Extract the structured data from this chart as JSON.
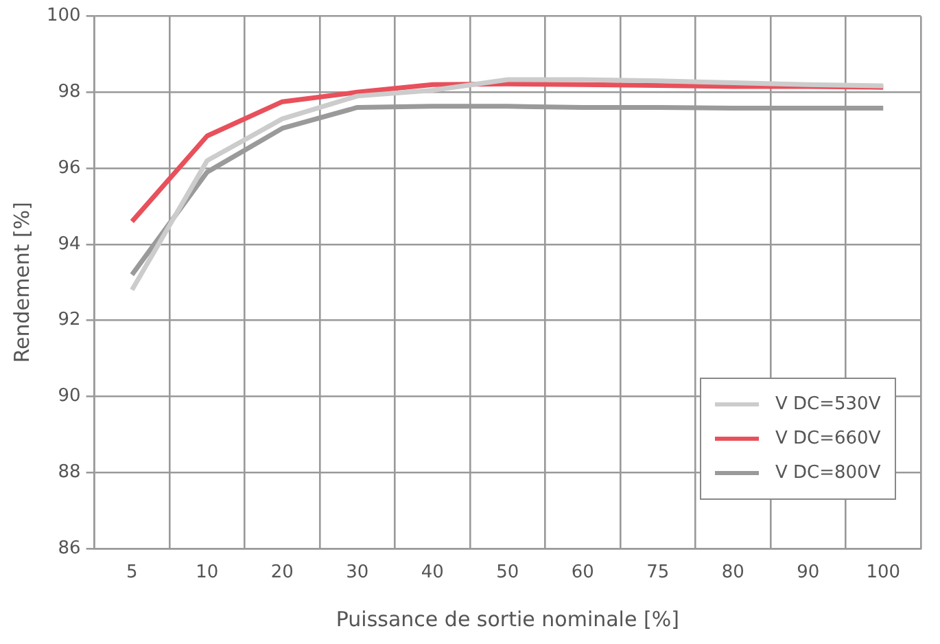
{
  "chart_data": {
    "type": "line",
    "xlabel": "Puissance de sortie nominale [%]",
    "ylabel": "Rendement [%]",
    "categories": [
      "5",
      "10",
      "20",
      "30",
      "40",
      "50",
      "60",
      "75",
      "80",
      "90",
      "100"
    ],
    "series": [
      {
        "name": "V DC=530V",
        "color": "#cccccc",
        "values": [
          92.8,
          96.2,
          97.3,
          97.9,
          98.05,
          98.33,
          98.33,
          98.3,
          98.25,
          98.2,
          98.17
        ]
      },
      {
        "name": "V DC=660V",
        "color": "#e8505b",
        "values": [
          94.6,
          96.85,
          97.75,
          98.0,
          98.2,
          98.22,
          98.2,
          98.18,
          98.15,
          98.15,
          98.13
        ]
      },
      {
        "name": "V DC=800V",
        "color": "#9a9a9a",
        "values": [
          93.2,
          95.9,
          97.05,
          97.6,
          97.63,
          97.63,
          97.6,
          97.6,
          97.58,
          97.58,
          97.58
        ]
      }
    ],
    "ylim": [
      86,
      100
    ],
    "yticks": [
      86,
      88,
      90,
      92,
      94,
      96,
      98,
      100
    ],
    "grid": true,
    "legend": "bottom right",
    "marker": "none",
    "line_style": "solid"
  }
}
